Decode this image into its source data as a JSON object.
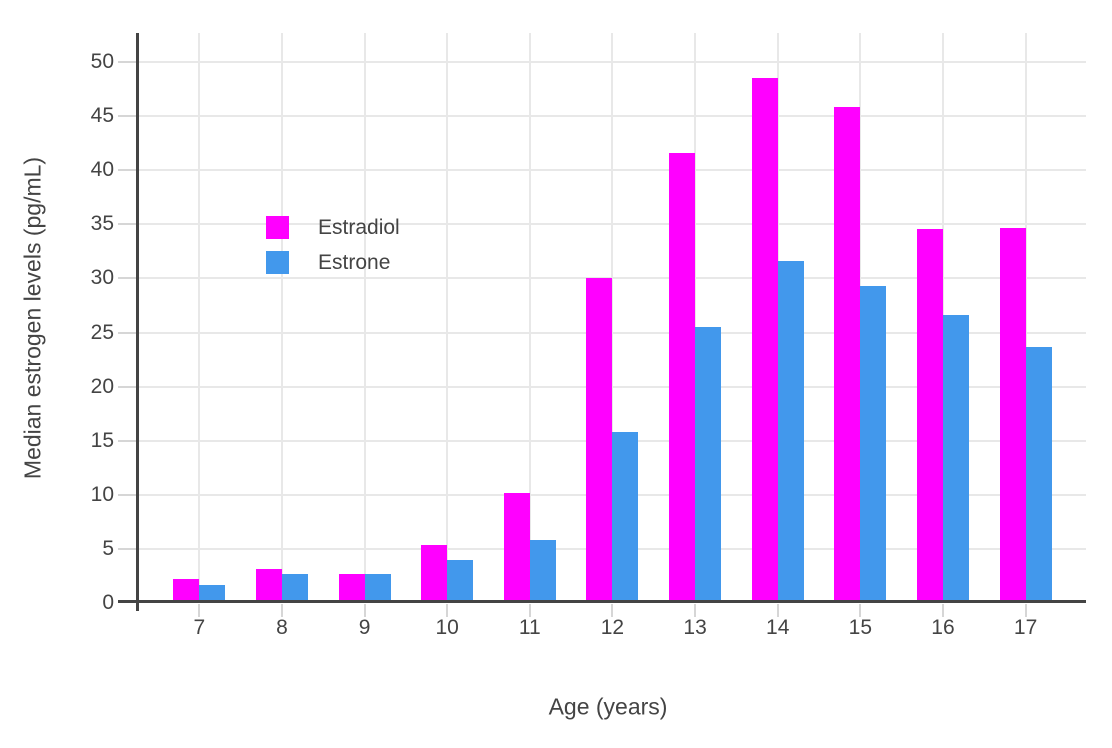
{
  "chart_data": {
    "type": "bar",
    "categories": [
      "7",
      "8",
      "9",
      "10",
      "11",
      "12",
      "13",
      "14",
      "15",
      "16",
      "17"
    ],
    "series": [
      {
        "name": "Estradiol",
        "color": "#FF00FF",
        "values": [
          2.2,
          3.1,
          2.7,
          5.4,
          10.2,
          30.0,
          41.6,
          48.5,
          45.8,
          34.6,
          34.7
        ]
      },
      {
        "name": "Estrone",
        "color": "#4298EC",
        "values": [
          1.7,
          2.7,
          2.7,
          4.0,
          5.8,
          15.8,
          25.5,
          31.6,
          29.3,
          26.6,
          23.7
        ]
      }
    ],
    "title": "",
    "xlabel": "Age (years)",
    "ylabel": "Median estrogen levels (pg/mL)",
    "yticks": [
      0,
      5,
      10,
      15,
      20,
      25,
      30,
      35,
      40,
      45,
      50
    ],
    "ylim": [
      0,
      52.6
    ],
    "grid": true,
    "barmode": "grouped",
    "legend_position": "inside-top-left",
    "colors": {
      "axis_line": "#444444",
      "grid_line": "#E8E8E8",
      "tick_mark": "#D6D6D6",
      "text": "#444444",
      "background": "#FFFFFF"
    }
  }
}
